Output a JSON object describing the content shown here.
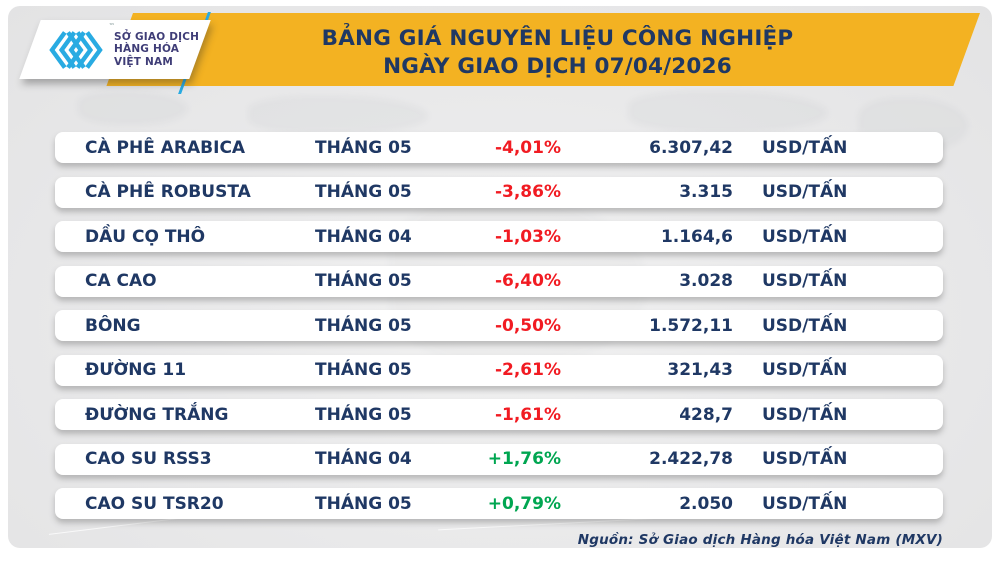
{
  "header": {
    "logo": {
      "icon": "mxv-chevrons-logo",
      "org_lines": [
        "SỞ GIAO DỊCH",
        "HÀNG HÓA",
        "VIỆT NAM"
      ],
      "trademark": "™"
    },
    "title_line1": "BẢNG GIÁ NGUYÊN LIỆU CÔNG NGHIỆP",
    "title_line2": "NGÀY GIAO DỊCH 07/04/2026"
  },
  "table": {
    "rows": [
      {
        "name": "CÀ PHÊ ARABICA",
        "month": "THÁNG 05",
        "change": "-4,01%",
        "price": "6.307,42",
        "unit": "USD/TẤN"
      },
      {
        "name": "CÀ PHÊ ROBUSTA",
        "month": "THÁNG 05",
        "change": "-3,86%",
        "price": "3.315",
        "unit": "USD/TẤN"
      },
      {
        "name": "DẦU CỌ THÔ",
        "month": "THÁNG 04",
        "change": "-1,03%",
        "price": "1.164,6",
        "unit": "USD/TẤN"
      },
      {
        "name": "CA CAO",
        "month": "THÁNG 05",
        "change": "-6,40%",
        "price": "3.028",
        "unit": "USD/TẤN"
      },
      {
        "name": "BÔNG",
        "month": "THÁNG 05",
        "change": "-0,50%",
        "price": "1.572,11",
        "unit": "USD/TẤN"
      },
      {
        "name": "ĐƯỜNG 11",
        "month": "THÁNG 05",
        "change": "-2,61%",
        "price": "321,43",
        "unit": "USD/TẤN"
      },
      {
        "name": "ĐƯỜNG TRẮNG",
        "month": "THÁNG 05",
        "change": "-1,61%",
        "price": "428,7",
        "unit": "USD/TẤN"
      },
      {
        "name": "CAO SU RSS3",
        "month": "THÁNG 04",
        "change": "+1,76%",
        "price": "2.422,78",
        "unit": "USD/TẤN"
      },
      {
        "name": "CAO SU TSR20",
        "month": "THÁNG 05",
        "change": "+0,79%",
        "price": "2.050",
        "unit": "USD/TẤN"
      }
    ]
  },
  "footer": {
    "source": "Nguồn: Sở Giao dịch Hàng hóa Việt Nam (MXV)"
  },
  "colors": {
    "banner_yellow": "#F3B222",
    "navy": "#1F3864",
    "red": "#F11B22",
    "green": "#00A651",
    "cyan": "#29ABE2",
    "logo_text": "#3F3D77"
  },
  "chart_data": {
    "type": "table",
    "title": "BẢNG GIÁ NGUYÊN LIỆU CÔNG NGHIỆP — NGÀY GIAO DỊCH 07/04/2026",
    "columns": [
      "commodity",
      "contract_month",
      "percent_change",
      "price",
      "unit"
    ],
    "rows": [
      [
        "CÀ PHÊ ARABICA",
        "THÁNG 05",
        -4.01,
        6307.42,
        "USD/TẤN"
      ],
      [
        "CÀ PHÊ ROBUSTA",
        "THÁNG 05",
        -3.86,
        3315,
        "USD/TẤN"
      ],
      [
        "DẦU CỌ THÔ",
        "THÁNG 04",
        -1.03,
        1164.6,
        "USD/TẤN"
      ],
      [
        "CA CAO",
        "THÁNG 05",
        -6.4,
        3028,
        "USD/TẤN"
      ],
      [
        "BÔNG",
        "THÁNG 05",
        -0.5,
        1572.11,
        "USD/TẤN"
      ],
      [
        "ĐƯỜNG 11",
        "THÁNG 05",
        -2.61,
        321.43,
        "USD/TẤN"
      ],
      [
        "ĐƯỜNG TRẮNG",
        "THÁNG 05",
        -1.61,
        428.7,
        "USD/TẤN"
      ],
      [
        "CAO SU RSS3",
        "THÁNG 04",
        1.76,
        2422.78,
        "USD/TẤN"
      ],
      [
        "CAO SU TSR20",
        "THÁNG 05",
        0.79,
        2050,
        "USD/TẤN"
      ]
    ],
    "source": "Nguồn: Sở Giao dịch Hàng hóa Việt Nam (MXV)"
  }
}
